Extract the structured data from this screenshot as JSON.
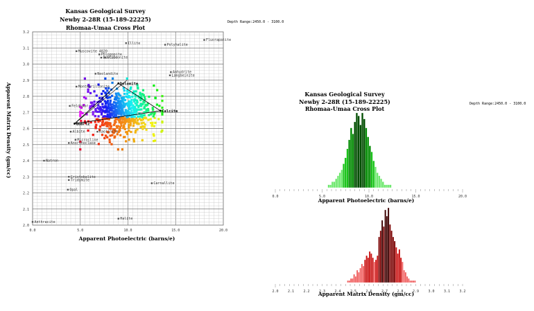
{
  "crossplot": {
    "title1": "Kansas Geological Survey",
    "title2": "Newby 2-28R (15-189-22225)",
    "title3": "Rhomaa-Umaa Cross Plot",
    "depth_label": "Depth Range:2450.0 - 3100.0",
    "xlabel": "Apparent Photoelectric (barns/e)",
    "ylabel": "Apparent Matrix Density (gm/cc)"
  },
  "hist_pe": {
    "title1": "Kansas Geological Survey",
    "title2": "Newby 2-28R (15-189-22225)",
    "title3": "Rhomaa-Umaa Cross Plot",
    "depth_label": "Depth Range:2450.0 - 3100.0",
    "xlabel": "Apparent Photoelectric (barns/e)"
  },
  "hist_rho": {
    "xlabel": "Apparent Matrix Density (gm/cc)"
  },
  "chart_data": [
    {
      "type": "scatter",
      "title": "Rhomaa-Umaa Cross Plot",
      "xlabel": "Apparent Photoelectric (barns/e)",
      "ylabel": "Apparent Matrix Density (gm/cc)",
      "xlim": [
        0,
        20
      ],
      "ylim": [
        2.0,
        3.2
      ],
      "x_ticks": [
        "0.0",
        "5.0",
        "10.0",
        "15.0",
        "20.0"
      ],
      "y_ticks": [
        "2.0",
        "2.1",
        "2.2",
        "2.3",
        "2.4",
        "2.5",
        "2.6",
        "2.7",
        "2.8",
        "2.9",
        "3.0",
        "3.1",
        "3.2"
      ],
      "minerals": [
        {
          "name": "Illite",
          "x": 9.8,
          "y": 3.13
        },
        {
          "name": "Polyhalite",
          "x": 13.9,
          "y": 3.12
        },
        {
          "name": "Fluorapatite",
          "x": 18.0,
          "y": 3.15
        },
        {
          "name": "Muscovite 4820",
          "x": 4.6,
          "y": 3.08
        },
        {
          "name": "Phlogopite",
          "x": 7.0,
          "y": 3.06
        },
        {
          "name": "Biotite",
          "x": 7.2,
          "y": 3.04
        },
        {
          "name": "Glauconite",
          "x": 7.6,
          "y": 3.04
        },
        {
          "name": "Anhydrite",
          "x": 14.5,
          "y": 2.95
        },
        {
          "name": "Langbeinite",
          "x": 14.4,
          "y": 2.93
        },
        {
          "name": "Neolandite",
          "x": 6.6,
          "y": 2.94
        },
        {
          "name": "Montmorillonite",
          "x": 4.6,
          "y": 2.86
        },
        {
          "name": "Feldspar",
          "x": 3.9,
          "y": 2.74
        },
        {
          "name": "Albite",
          "x": 4.0,
          "y": 2.58
        },
        {
          "name": "Microcline",
          "x": 4.5,
          "y": 2.53
        },
        {
          "name": "Anorthoclase",
          "x": 3.8,
          "y": 2.51
        },
        {
          "name": "Kaolinite",
          "x": 6.8,
          "y": 2.58
        },
        {
          "name": "Natron",
          "x": 1.2,
          "y": 2.4
        },
        {
          "name": "Cristobalite",
          "x": 3.8,
          "y": 2.3
        },
        {
          "name": "Tridymite",
          "x": 3.8,
          "y": 2.28
        },
        {
          "name": "Opal",
          "x": 3.7,
          "y": 2.22
        },
        {
          "name": "Carnallite",
          "x": 12.5,
          "y": 2.26
        },
        {
          "name": "Halite",
          "x": 9.0,
          "y": 2.04
        },
        {
          "name": "Anthracite",
          "x": 0.0,
          "y": 2.02
        }
      ],
      "end_members": [
        {
          "name": "Dolomite",
          "x": 9.0,
          "y": 2.88
        },
        {
          "name": "Calcite",
          "x": 13.4,
          "y": 2.71
        },
        {
          "name": "Quartz",
          "x": 4.4,
          "y": 2.63
        }
      ]
    },
    {
      "type": "bar",
      "title": "Rhomaa-Umaa Cross Plot",
      "xlabel": "Apparent Photoelectric (barns/e)",
      "xlim": [
        0,
        20
      ],
      "x_ticks": [
        "0.0",
        "5.0",
        "10.0",
        "15.0",
        "20.0"
      ],
      "bin_start": 5.6,
      "bin_width": 0.2,
      "counts": [
        1,
        1,
        2,
        2,
        3,
        4,
        5,
        6,
        8,
        10,
        13,
        16,
        20,
        18,
        22,
        25,
        24,
        21,
        25,
        23,
        20,
        17,
        14,
        12,
        9,
        7,
        5,
        4,
        3,
        2,
        1,
        1,
        1,
        1
      ],
      "color": "#00c000"
    },
    {
      "type": "bar",
      "xlabel": "Apparent Matrix Density (gm/cc)",
      "xlim": [
        2.0,
        3.2
      ],
      "x_ticks": [
        "2.0",
        "2.1",
        "2.2",
        "2.3",
        "2.4",
        "2.5",
        "2.6",
        "2.7",
        "2.8",
        "2.9",
        "3.0",
        "3.1",
        "3.2"
      ],
      "bin_start": 2.46,
      "bin_width": 0.01,
      "counts": [
        1,
        1,
        2,
        2,
        4,
        3,
        6,
        5,
        7,
        9,
        8,
        11,
        13,
        12,
        15,
        14,
        12,
        10,
        11,
        13,
        22,
        25,
        30,
        27,
        35,
        32,
        36,
        28,
        25,
        22,
        20,
        17,
        14,
        16,
        12,
        10,
        6,
        5,
        3,
        2,
        1,
        1,
        1,
        1
      ],
      "color": "#c00000"
    }
  ]
}
